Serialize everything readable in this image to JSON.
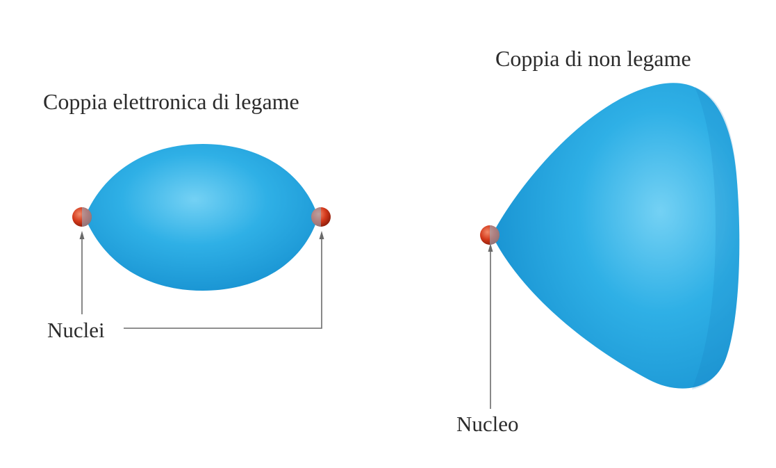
{
  "bonding_pair": {
    "title": "Coppia elettronica di legame",
    "label": "Nuclei"
  },
  "nonbonding_pair": {
    "title": "Coppia di non legame",
    "label": "Nucleo"
  },
  "colors": {
    "cloud": "#2fb0e6",
    "cloud_highlight": "#74d1f4",
    "cloud_edge": "#1b96d4",
    "nucleus": "#d3391b",
    "leader": "#6a6a6a"
  }
}
